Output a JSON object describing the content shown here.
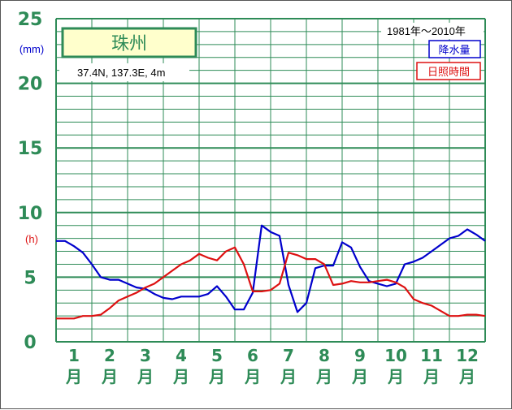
{
  "chart_data": {
    "type": "line",
    "station": "珠州",
    "coords_text": "37.4N,  137.3E,  4m",
    "period": "1981年～2010年",
    "y_unit_top": "(mm)",
    "y_unit_bottom": "(h)",
    "y_ticks": [
      "0",
      "5",
      "10",
      "15",
      "20",
      "25"
    ],
    "ylim": [
      0,
      25
    ],
    "x_ticks": [
      {
        "num": "1",
        "suffix": "月"
      },
      {
        "num": "2",
        "suffix": "月"
      },
      {
        "num": "3",
        "suffix": "月"
      },
      {
        "num": "4",
        "suffix": "月"
      },
      {
        "num": "5",
        "suffix": "月"
      },
      {
        "num": "6",
        "suffix": "月"
      },
      {
        "num": "7",
        "suffix": "月"
      },
      {
        "num": "8",
        "suffix": "月"
      },
      {
        "num": "9",
        "suffix": "月"
      },
      {
        "num": "10",
        "suffix": "月"
      },
      {
        "num": "11",
        "suffix": "月"
      },
      {
        "num": "12",
        "suffix": "月"
      }
    ],
    "series": [
      {
        "name": "降水量",
        "color": "#0000cc",
        "x": [
          0.0,
          0.25,
          0.5,
          0.75,
          1.0,
          1.25,
          1.5,
          1.75,
          2.0,
          2.25,
          2.5,
          2.75,
          3.0,
          3.25,
          3.5,
          3.75,
          4.0,
          4.25,
          4.5,
          4.75,
          5.0,
          5.25,
          5.5,
          5.75,
          6.0,
          6.25,
          6.5,
          6.75,
          7.0,
          7.25,
          7.5,
          7.75,
          8.0,
          8.25,
          8.5,
          8.75,
          9.0,
          9.25,
          9.5,
          9.75,
          10.0,
          10.25,
          10.5,
          10.75,
          11.0,
          11.25,
          11.5,
          11.75,
          12.0
        ],
        "values": [
          7.8,
          7.8,
          7.4,
          6.9,
          6.0,
          5.0,
          4.8,
          4.8,
          4.5,
          4.2,
          4.1,
          3.7,
          3.4,
          3.3,
          3.5,
          3.5,
          3.5,
          3.7,
          4.3,
          3.5,
          2.5,
          2.5,
          3.8,
          9.0,
          8.5,
          8.2,
          4.4,
          2.3,
          3.0,
          5.7,
          5.9,
          5.9,
          7.7,
          7.3,
          5.8,
          4.7,
          4.5,
          4.3,
          4.5,
          6.0,
          6.2,
          6.5,
          7.0,
          7.5,
          8.0,
          8.2,
          8.7,
          8.3,
          7.8
        ]
      },
      {
        "name": "日照時間",
        "color": "#dd1111",
        "x": [
          0.0,
          0.25,
          0.5,
          0.75,
          1.0,
          1.25,
          1.5,
          1.75,
          2.0,
          2.25,
          2.5,
          2.75,
          3.0,
          3.25,
          3.5,
          3.75,
          4.0,
          4.25,
          4.5,
          4.75,
          5.0,
          5.25,
          5.5,
          5.75,
          6.0,
          6.25,
          6.5,
          6.75,
          7.0,
          7.25,
          7.5,
          7.75,
          8.0,
          8.25,
          8.5,
          8.75,
          9.0,
          9.25,
          9.5,
          9.75,
          10.0,
          10.25,
          10.5,
          10.75,
          11.0,
          11.25,
          11.5,
          11.75,
          12.0
        ],
        "values": [
          1.8,
          1.8,
          1.8,
          2.0,
          2.0,
          2.1,
          2.6,
          3.2,
          3.5,
          3.8,
          4.2,
          4.5,
          5.0,
          5.5,
          6.0,
          6.3,
          6.8,
          6.5,
          6.3,
          7.0,
          7.3,
          6.0,
          3.9,
          3.9,
          4.0,
          4.5,
          6.9,
          6.7,
          6.4,
          6.4,
          6.0,
          4.4,
          4.5,
          4.7,
          4.6,
          4.6,
          4.7,
          4.8,
          4.6,
          4.2,
          3.3,
          3.0,
          2.8,
          2.4,
          2.0,
          2.0,
          2.1,
          2.1,
          2.0
        ]
      }
    ],
    "grid": true,
    "legend_placement": "top-right"
  }
}
